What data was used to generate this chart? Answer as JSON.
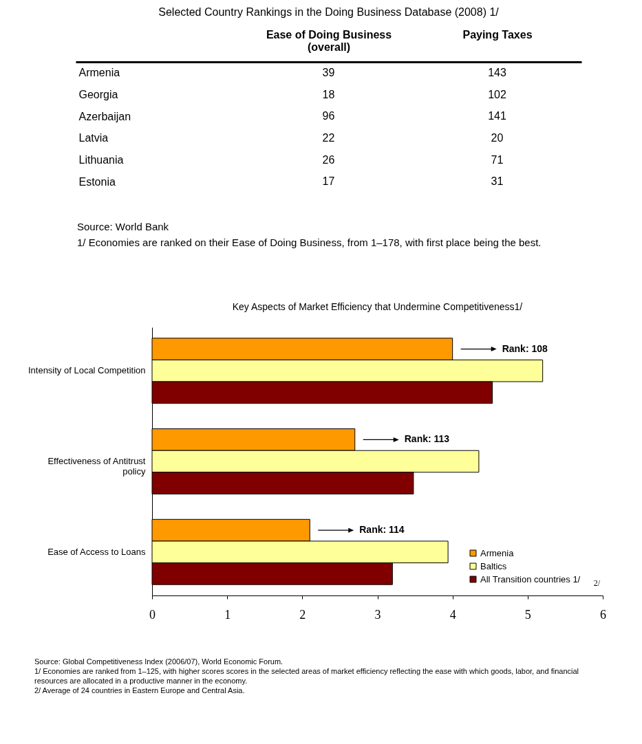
{
  "chart_data": [
    {
      "type": "other",
      "title": "Selected Country Rankings in the Doing Business Database (2008) 1/",
      "categories": [
        "Armenia",
        "Georgia",
        "Azerbaijan",
        "Latvia",
        "Lithuania",
        "Estonia"
      ],
      "data_labels": true,
      "series": [
        {
          "name": "Ease of Doing Business (overall)",
          "values": [
            39,
            18,
            96,
            22,
            26,
            17
          ]
        },
        {
          "name": "Paying Taxes",
          "values": [
            143,
            102,
            141,
            20,
            71,
            31
          ]
        }
      ],
      "annotations": [
        "Source: World Bank",
        "1/ Economies are ranked on their Ease of Doing Business, from 1–178, with first place being the best."
      ]
    },
    {
      "type": "bar",
      "orientation": "horizontal",
      "title": "Key Aspects of Market Efficiency that Undermine Competitiveness1/",
      "categories": [
        "Intensity of Local Competition",
        "Effectiveness of Antitrust policy",
        "Ease of Access to Loans"
      ],
      "series": [
        {
          "name": "Armenia",
          "color": "#ff9900",
          "values": [
            4.0,
            2.7,
            2.1
          ]
        },
        {
          "name": "Baltics",
          "color": "#ffff99",
          "values": [
            5.2,
            4.35,
            3.94
          ]
        },
        {
          "name": "All Transition countries 1/",
          "color": "#800000",
          "values": [
            4.53,
            3.48,
            3.2
          ]
        }
      ],
      "xlim": [
        0,
        6
      ],
      "xticks": [
        0,
        1,
        2,
        3,
        4,
        5,
        6
      ],
      "legend": "bottom right",
      "grid": false,
      "annotations": [
        "Rank: 108",
        "Rank: 113",
        "Rank: 114",
        "2/",
        "Source: Global Competitiveness Index (2006/07), World Economic Forum.",
        "1/ Economies are ranked from 1–125, with higher scores scores in the selected areas of market efficiency reflecting the ease with which goods, labor, and financial resources are allocated in a productive manner in the economy.",
        "2/ Average of 24 countries in Eastern Europe and Central Asia."
      ]
    }
  ]
}
